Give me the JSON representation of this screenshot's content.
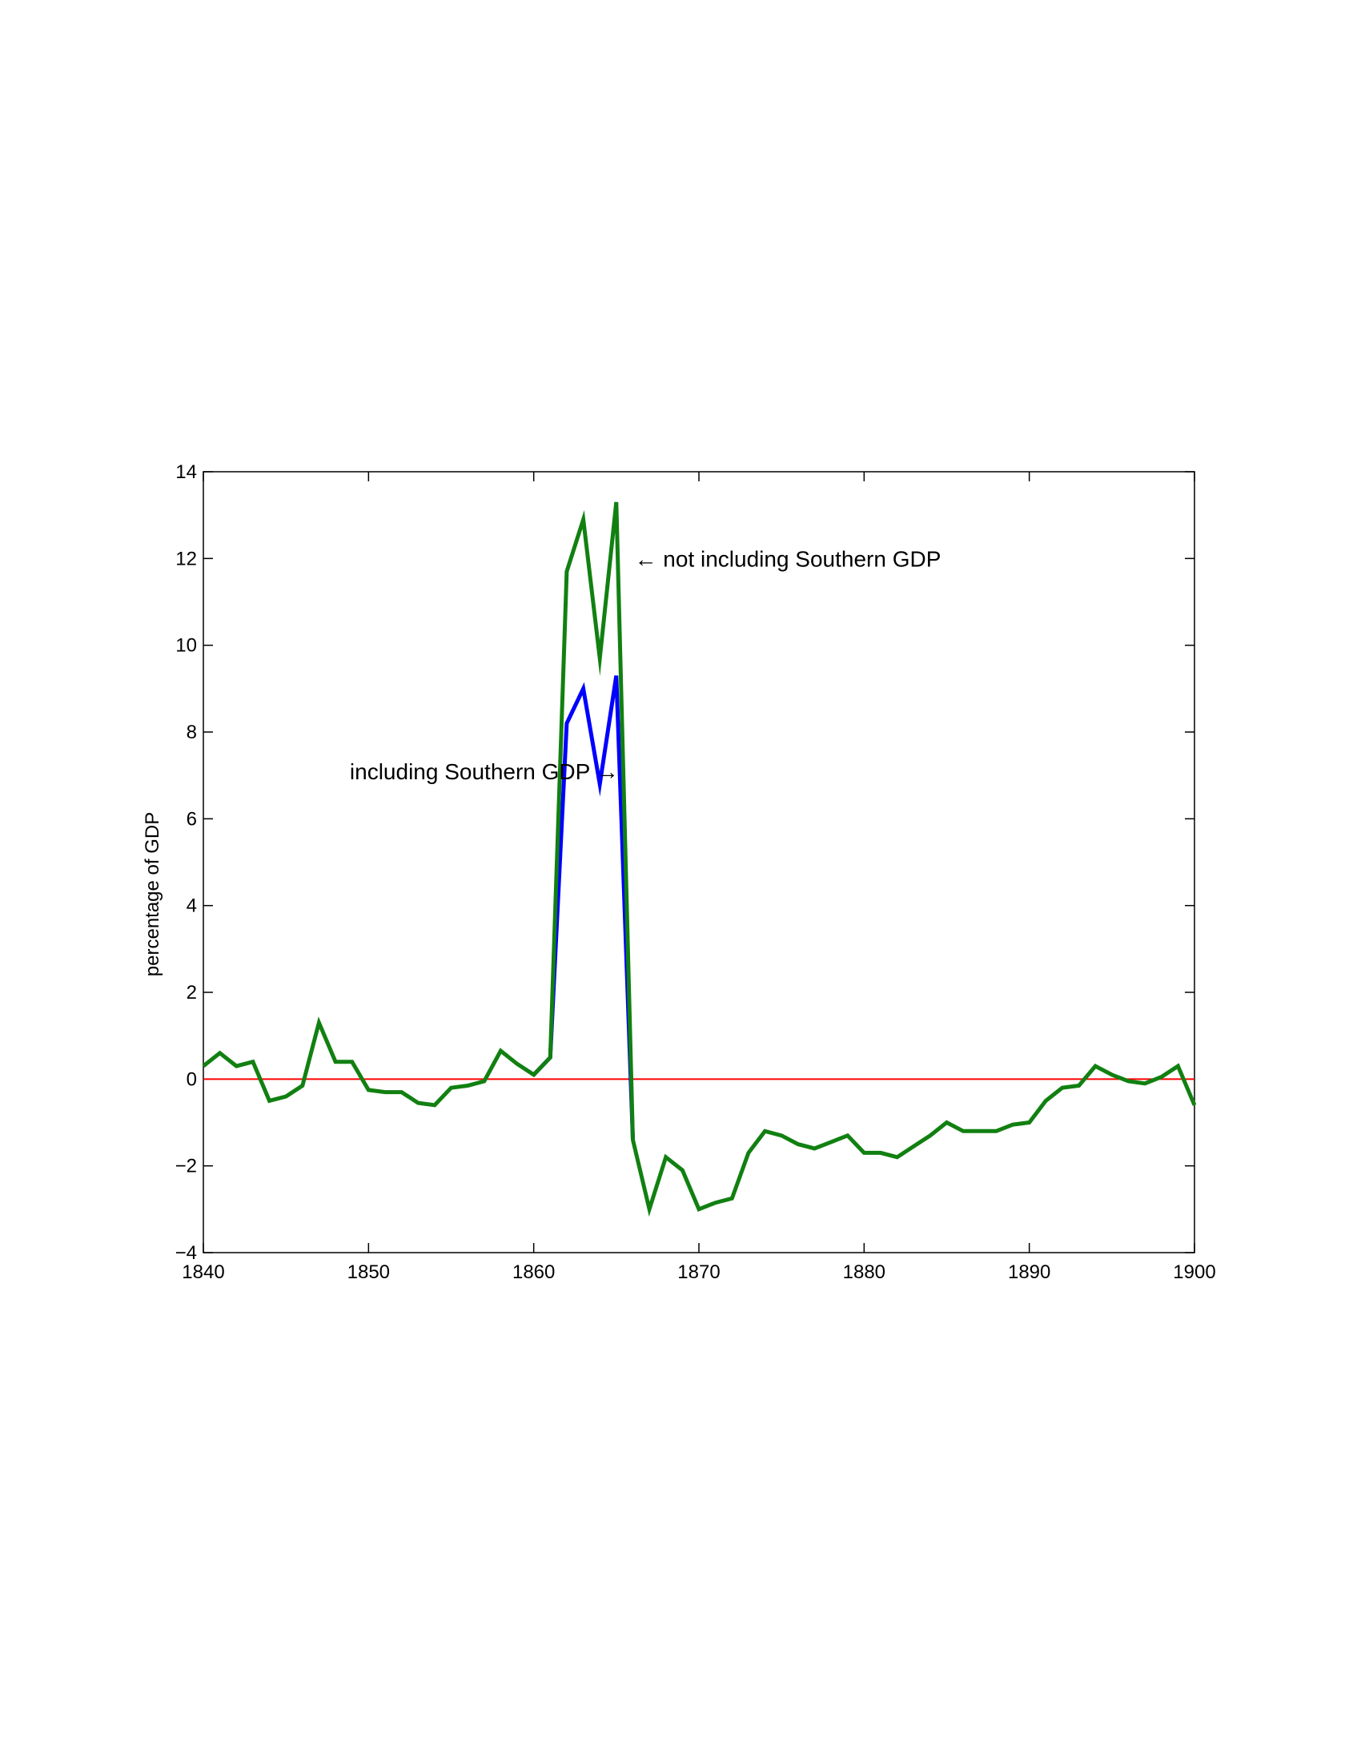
{
  "chart_data": {
    "type": "line",
    "title": "",
    "xlabel": "",
    "ylabel": "percentage of GDP",
    "xlim": [
      1840,
      1900
    ],
    "ylim": [
      -4,
      14
    ],
    "xticks": [
      1840,
      1850,
      1860,
      1870,
      1880,
      1890,
      1900
    ],
    "yticks": [
      -4,
      -2,
      0,
      2,
      4,
      6,
      8,
      10,
      12,
      14
    ],
    "xtick_labels": [
      "1840",
      "1850",
      "1860",
      "1870",
      "1880",
      "1890",
      "1900"
    ],
    "ytick_labels": [
      "−4",
      "−2",
      "0",
      "2",
      "4",
      "6",
      "8",
      "10",
      "12",
      "14"
    ],
    "grid": false,
    "reference_line": {
      "y": 0,
      "color": "#ff0000"
    },
    "series": [
      {
        "color": "#0000ff",
        "points": [
          [
            1860,
            0.1
          ],
          [
            1861,
            0.5
          ],
          [
            1862,
            8.2
          ],
          [
            1863,
            9.0
          ],
          [
            1864,
            6.8
          ],
          [
            1865,
            9.3
          ],
          [
            1866,
            -1.4
          ]
        ]
      },
      {
        "color": "#118011",
        "points": [
          [
            1840,
            0.3
          ],
          [
            1841,
            0.6
          ],
          [
            1842,
            0.3
          ],
          [
            1843,
            0.4
          ],
          [
            1844,
            -0.5
          ],
          [
            1845,
            -0.4
          ],
          [
            1846,
            -0.15
          ],
          [
            1847,
            1.3
          ],
          [
            1848,
            0.4
          ],
          [
            1849,
            0.4
          ],
          [
            1850,
            -0.25
          ],
          [
            1851,
            -0.3
          ],
          [
            1852,
            -0.3
          ],
          [
            1853,
            -0.55
          ],
          [
            1854,
            -0.6
          ],
          [
            1855,
            -0.2
          ],
          [
            1856,
            -0.15
          ],
          [
            1857,
            -0.05
          ],
          [
            1858,
            0.65
          ],
          [
            1859,
            0.35
          ],
          [
            1860,
            0.1
          ],
          [
            1861,
            0.5
          ],
          [
            1862,
            11.7
          ],
          [
            1863,
            12.9
          ],
          [
            1864,
            9.7
          ],
          [
            1865,
            13.3
          ],
          [
            1866,
            -1.4
          ],
          [
            1867,
            -3.0
          ],
          [
            1868,
            -1.8
          ],
          [
            1869,
            -2.1
          ],
          [
            1870,
            -3.0
          ],
          [
            1871,
            -2.85
          ],
          [
            1872,
            -2.75
          ],
          [
            1873,
            -1.7
          ],
          [
            1874,
            -1.2
          ],
          [
            1875,
            -1.3
          ],
          [
            1876,
            -1.5
          ],
          [
            1877,
            -1.6
          ],
          [
            1878,
            -1.45
          ],
          [
            1879,
            -1.3
          ],
          [
            1880,
            -1.7
          ],
          [
            1881,
            -1.7
          ],
          [
            1882,
            -1.8
          ],
          [
            1883,
            -1.55
          ],
          [
            1884,
            -1.3
          ],
          [
            1885,
            -1.0
          ],
          [
            1886,
            -1.2
          ],
          [
            1887,
            -1.2
          ],
          [
            1888,
            -1.2
          ],
          [
            1889,
            -1.05
          ],
          [
            1890,
            -1.0
          ],
          [
            1891,
            -0.5
          ],
          [
            1892,
            -0.2
          ],
          [
            1893,
            -0.15
          ],
          [
            1894,
            0.3
          ],
          [
            1895,
            0.1
          ],
          [
            1896,
            -0.05
          ],
          [
            1897,
            -0.1
          ],
          [
            1898,
            0.05
          ],
          [
            1899,
            0.3
          ],
          [
            1900,
            -0.6
          ]
        ]
      }
    ],
    "annotations": [
      {
        "text": "← not including Southern GDP",
        "x": 1866.1,
        "y": 12.0,
        "anchor": "start"
      },
      {
        "text": "including Southern GDP →",
        "x": 1857.0,
        "y": 7.1,
        "anchor": "middle"
      }
    ]
  }
}
